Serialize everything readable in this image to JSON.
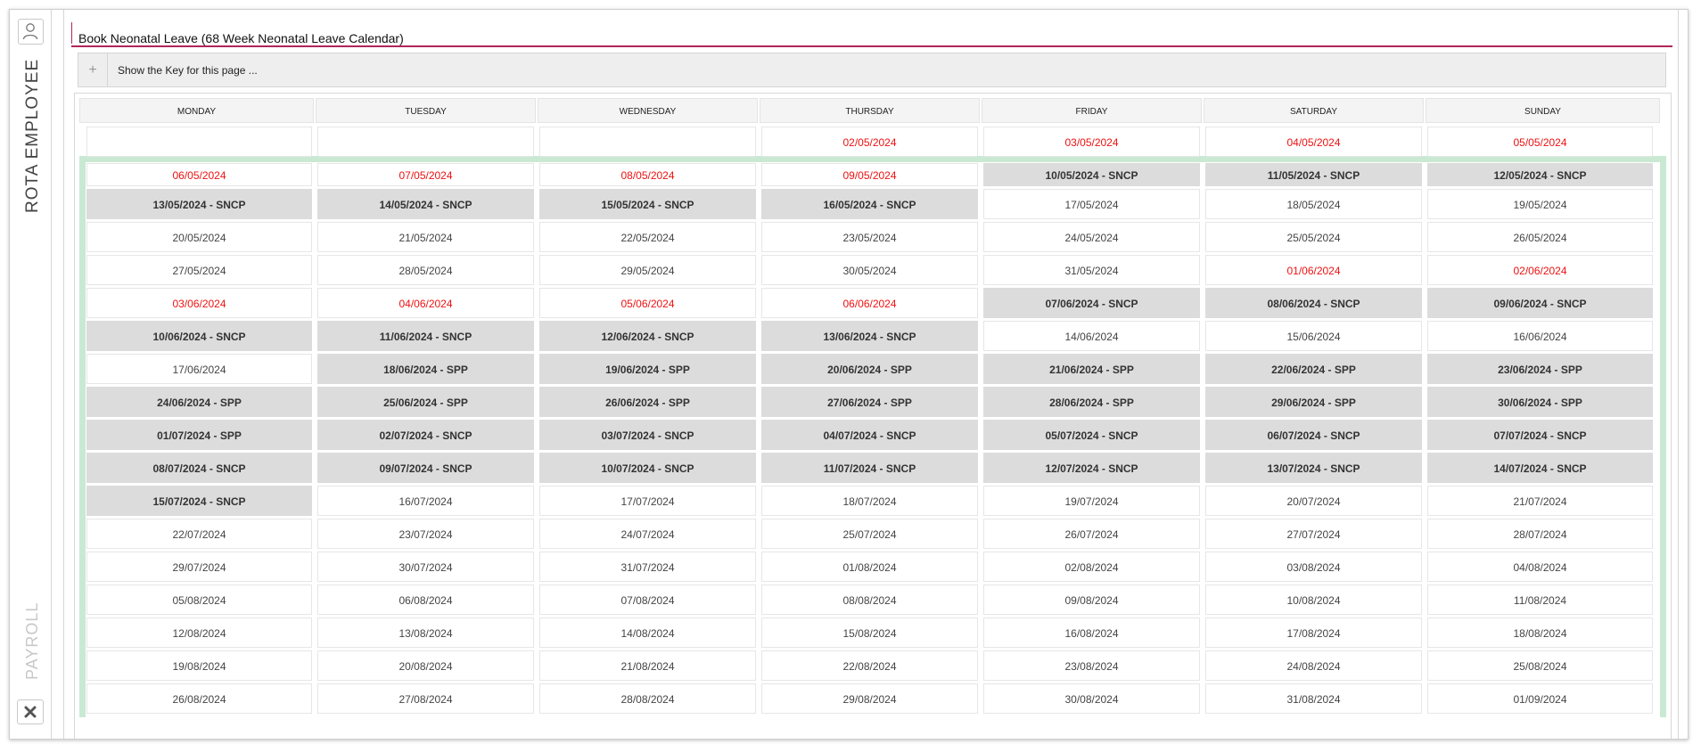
{
  "sidebar": {
    "user_icon": "user-icon",
    "rota_label": "ROTA EMPLOYEE",
    "payroll_label": "PAYROLL",
    "close_icon": "close-icon"
  },
  "page": {
    "title": "Book Neonatal Leave (68 Week Neonatal Leave Calendar)",
    "accent_color": "#b0255a"
  },
  "keybar": {
    "toggle": "+",
    "label": "Show the Key for this page ..."
  },
  "calendar": {
    "days": [
      "MONDAY",
      "TUESDAY",
      "WEDNESDAY",
      "THURSDAY",
      "FRIDAY",
      "SATURDAY",
      "SUNDAY"
    ],
    "colors": {
      "red_text": "#ee1111",
      "leave_bg": "#dcdcdc",
      "strip": "#c9e9d3"
    },
    "rows": [
      [
        {
          "text": "",
          "style": "empty"
        },
        {
          "text": "",
          "style": "empty"
        },
        {
          "text": "",
          "style": "empty"
        },
        {
          "text": "02/05/2024",
          "style": "red"
        },
        {
          "text": "03/05/2024",
          "style": "red"
        },
        {
          "text": "04/05/2024",
          "style": "red"
        },
        {
          "text": "05/05/2024",
          "style": "red"
        }
      ],
      [
        {
          "text": "06/05/2024",
          "style": "red"
        },
        {
          "text": "07/05/2024",
          "style": "red"
        },
        {
          "text": "08/05/2024",
          "style": "red"
        },
        {
          "text": "09/05/2024",
          "style": "red"
        },
        {
          "text": "10/05/2024 - SNCP",
          "style": "grey"
        },
        {
          "text": "11/05/2024 - SNCP",
          "style": "grey"
        },
        {
          "text": "12/05/2024 - SNCP",
          "style": "grey"
        }
      ],
      [
        {
          "text": "13/05/2024 - SNCP",
          "style": "grey"
        },
        {
          "text": "14/05/2024 - SNCP",
          "style": "grey"
        },
        {
          "text": "15/05/2024 - SNCP",
          "style": "grey"
        },
        {
          "text": "16/05/2024 - SNCP",
          "style": "grey"
        },
        {
          "text": "17/05/2024",
          "style": "normal"
        },
        {
          "text": "18/05/2024",
          "style": "normal"
        },
        {
          "text": "19/05/2024",
          "style": "normal"
        }
      ],
      [
        {
          "text": "20/05/2024",
          "style": "normal"
        },
        {
          "text": "21/05/2024",
          "style": "normal"
        },
        {
          "text": "22/05/2024",
          "style": "normal"
        },
        {
          "text": "23/05/2024",
          "style": "normal"
        },
        {
          "text": "24/05/2024",
          "style": "normal"
        },
        {
          "text": "25/05/2024",
          "style": "normal"
        },
        {
          "text": "26/05/2024",
          "style": "normal"
        }
      ],
      [
        {
          "text": "27/05/2024",
          "style": "normal"
        },
        {
          "text": "28/05/2024",
          "style": "normal"
        },
        {
          "text": "29/05/2024",
          "style": "normal"
        },
        {
          "text": "30/05/2024",
          "style": "normal"
        },
        {
          "text": "31/05/2024",
          "style": "normal"
        },
        {
          "text": "01/06/2024",
          "style": "red"
        },
        {
          "text": "02/06/2024",
          "style": "red"
        }
      ],
      [
        {
          "text": "03/06/2024",
          "style": "red"
        },
        {
          "text": "04/06/2024",
          "style": "red"
        },
        {
          "text": "05/06/2024",
          "style": "red"
        },
        {
          "text": "06/06/2024",
          "style": "red"
        },
        {
          "text": "07/06/2024 - SNCP",
          "style": "grey"
        },
        {
          "text": "08/06/2024 - SNCP",
          "style": "grey"
        },
        {
          "text": "09/06/2024 - SNCP",
          "style": "grey"
        }
      ],
      [
        {
          "text": "10/06/2024 - SNCP",
          "style": "grey"
        },
        {
          "text": "11/06/2024 - SNCP",
          "style": "grey"
        },
        {
          "text": "12/06/2024 - SNCP",
          "style": "grey"
        },
        {
          "text": "13/06/2024 - SNCP",
          "style": "grey"
        },
        {
          "text": "14/06/2024",
          "style": "normal"
        },
        {
          "text": "15/06/2024",
          "style": "normal"
        },
        {
          "text": "16/06/2024",
          "style": "normal"
        }
      ],
      [
        {
          "text": "17/06/2024",
          "style": "normal"
        },
        {
          "text": "18/06/2024 - SPP",
          "style": "grey"
        },
        {
          "text": "19/06/2024 - SPP",
          "style": "grey"
        },
        {
          "text": "20/06/2024 - SPP",
          "style": "grey"
        },
        {
          "text": "21/06/2024 - SPP",
          "style": "grey"
        },
        {
          "text": "22/06/2024 - SPP",
          "style": "grey"
        },
        {
          "text": "23/06/2024 - SPP",
          "style": "grey"
        }
      ],
      [
        {
          "text": "24/06/2024 - SPP",
          "style": "grey"
        },
        {
          "text": "25/06/2024 - SPP",
          "style": "grey"
        },
        {
          "text": "26/06/2024 - SPP",
          "style": "grey"
        },
        {
          "text": "27/06/2024 - SPP",
          "style": "grey"
        },
        {
          "text": "28/06/2024 - SPP",
          "style": "grey"
        },
        {
          "text": "29/06/2024 - SPP",
          "style": "grey"
        },
        {
          "text": "30/06/2024 - SPP",
          "style": "grey"
        }
      ],
      [
        {
          "text": "01/07/2024 - SPP",
          "style": "grey"
        },
        {
          "text": "02/07/2024 - SNCP",
          "style": "grey"
        },
        {
          "text": "03/07/2024 - SNCP",
          "style": "grey"
        },
        {
          "text": "04/07/2024 - SNCP",
          "style": "grey"
        },
        {
          "text": "05/07/2024 - SNCP",
          "style": "grey"
        },
        {
          "text": "06/07/2024 - SNCP",
          "style": "grey"
        },
        {
          "text": "07/07/2024 - SNCP",
          "style": "grey"
        }
      ],
      [
        {
          "text": "08/07/2024 - SNCP",
          "style": "grey"
        },
        {
          "text": "09/07/2024 - SNCP",
          "style": "grey"
        },
        {
          "text": "10/07/2024 - SNCP",
          "style": "grey"
        },
        {
          "text": "11/07/2024 - SNCP",
          "style": "grey"
        },
        {
          "text": "12/07/2024 - SNCP",
          "style": "grey"
        },
        {
          "text": "13/07/2024 - SNCP",
          "style": "grey"
        },
        {
          "text": "14/07/2024 - SNCP",
          "style": "grey"
        }
      ],
      [
        {
          "text": "15/07/2024 - SNCP",
          "style": "grey"
        },
        {
          "text": "16/07/2024",
          "style": "normal"
        },
        {
          "text": "17/07/2024",
          "style": "normal"
        },
        {
          "text": "18/07/2024",
          "style": "normal"
        },
        {
          "text": "19/07/2024",
          "style": "normal"
        },
        {
          "text": "20/07/2024",
          "style": "normal"
        },
        {
          "text": "21/07/2024",
          "style": "normal"
        }
      ],
      [
        {
          "text": "22/07/2024",
          "style": "normal"
        },
        {
          "text": "23/07/2024",
          "style": "normal"
        },
        {
          "text": "24/07/2024",
          "style": "normal"
        },
        {
          "text": "25/07/2024",
          "style": "normal"
        },
        {
          "text": "26/07/2024",
          "style": "normal"
        },
        {
          "text": "27/07/2024",
          "style": "normal"
        },
        {
          "text": "28/07/2024",
          "style": "normal"
        }
      ],
      [
        {
          "text": "29/07/2024",
          "style": "normal"
        },
        {
          "text": "30/07/2024",
          "style": "normal"
        },
        {
          "text": "31/07/2024",
          "style": "normal"
        },
        {
          "text": "01/08/2024",
          "style": "normal"
        },
        {
          "text": "02/08/2024",
          "style": "normal"
        },
        {
          "text": "03/08/2024",
          "style": "normal"
        },
        {
          "text": "04/08/2024",
          "style": "normal"
        }
      ],
      [
        {
          "text": "05/08/2024",
          "style": "normal"
        },
        {
          "text": "06/08/2024",
          "style": "normal"
        },
        {
          "text": "07/08/2024",
          "style": "normal"
        },
        {
          "text": "08/08/2024",
          "style": "normal"
        },
        {
          "text": "09/08/2024",
          "style": "normal"
        },
        {
          "text": "10/08/2024",
          "style": "normal"
        },
        {
          "text": "11/08/2024",
          "style": "normal"
        }
      ],
      [
        {
          "text": "12/08/2024",
          "style": "normal"
        },
        {
          "text": "13/08/2024",
          "style": "normal"
        },
        {
          "text": "14/08/2024",
          "style": "normal"
        },
        {
          "text": "15/08/2024",
          "style": "normal"
        },
        {
          "text": "16/08/2024",
          "style": "normal"
        },
        {
          "text": "17/08/2024",
          "style": "normal"
        },
        {
          "text": "18/08/2024",
          "style": "normal"
        }
      ],
      [
        {
          "text": "19/08/2024",
          "style": "normal"
        },
        {
          "text": "20/08/2024",
          "style": "normal"
        },
        {
          "text": "21/08/2024",
          "style": "normal"
        },
        {
          "text": "22/08/2024",
          "style": "normal"
        },
        {
          "text": "23/08/2024",
          "style": "normal"
        },
        {
          "text": "24/08/2024",
          "style": "normal"
        },
        {
          "text": "25/08/2024",
          "style": "normal"
        }
      ],
      [
        {
          "text": "26/08/2024",
          "style": "normal"
        },
        {
          "text": "27/08/2024",
          "style": "normal"
        },
        {
          "text": "28/08/2024",
          "style": "normal"
        },
        {
          "text": "29/08/2024",
          "style": "normal"
        },
        {
          "text": "30/08/2024",
          "style": "normal"
        },
        {
          "text": "31/08/2024",
          "style": "normal"
        },
        {
          "text": "01/09/2024",
          "style": "normal"
        }
      ]
    ]
  }
}
